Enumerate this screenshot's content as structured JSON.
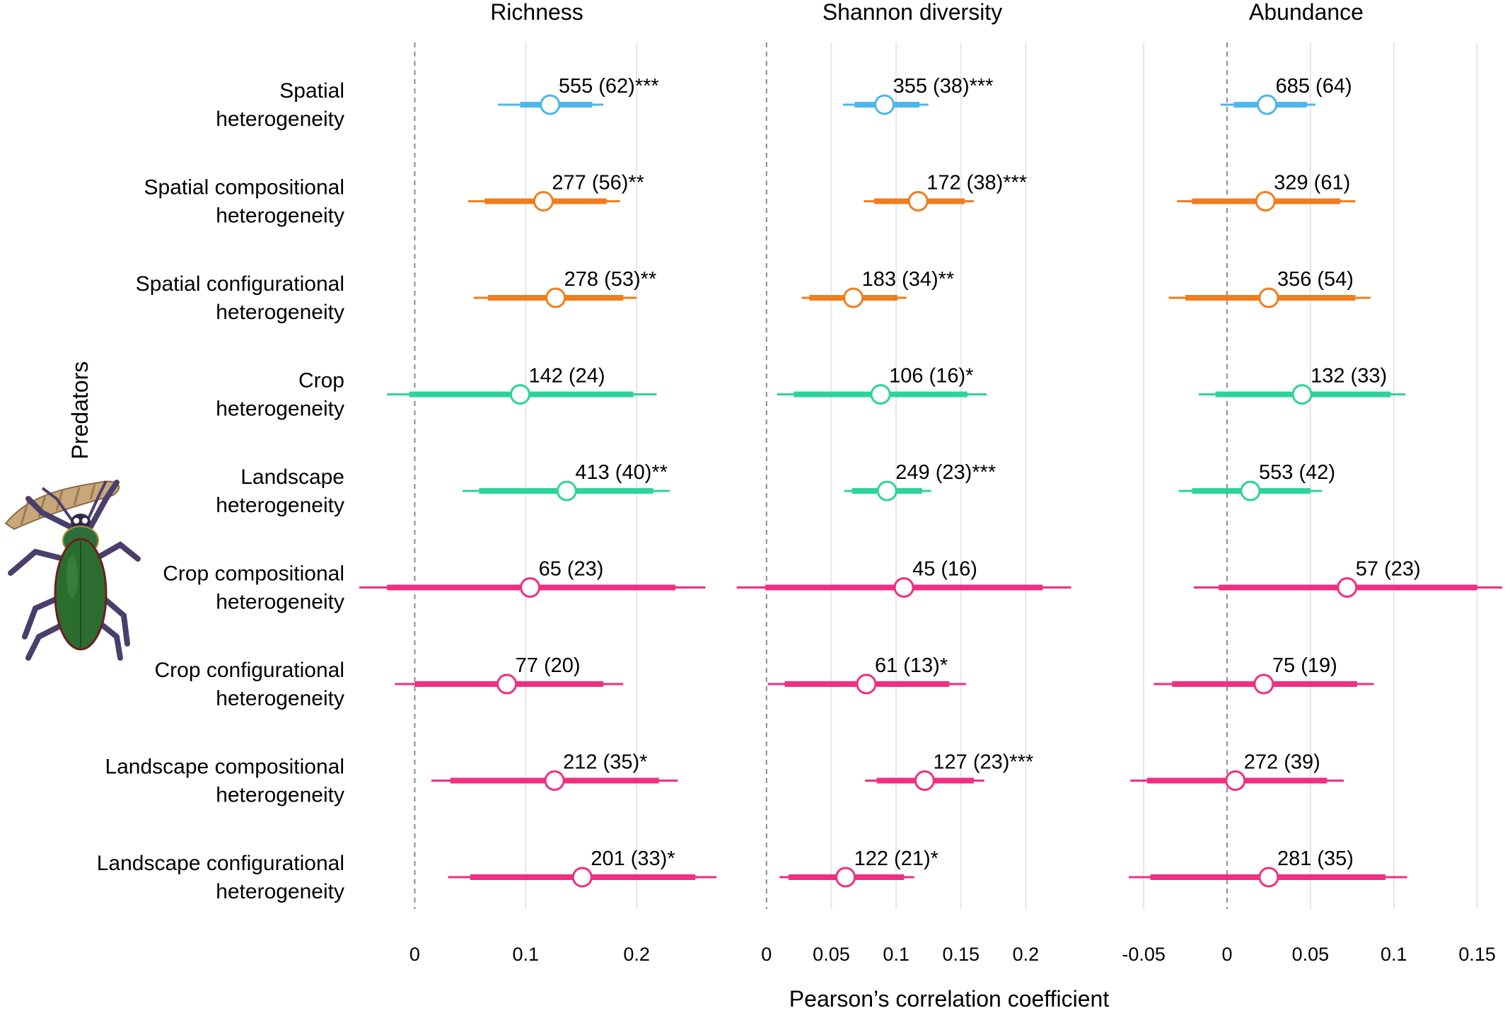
{
  "chart_data": {
    "type": "forest",
    "group_label": "Predators",
    "xlabel": "Pearson’s correlation coefficient",
    "rows": [
      [
        "Spatial",
        "heterogeneity"
      ],
      [
        "Spatial compositional",
        "heterogeneity"
      ],
      [
        "Spatial configurational",
        "heterogeneity"
      ],
      [
        "Crop",
        "heterogeneity"
      ],
      [
        "Landscape",
        "heterogeneity"
      ],
      [
        "Crop compositional",
        "heterogeneity"
      ],
      [
        "Crop configurational",
        "heterogeneity"
      ],
      [
        "Landscape compositional",
        "heterogeneity"
      ],
      [
        "Landscape configurational",
        "heterogeneity"
      ]
    ],
    "row_colors": [
      "#4db6ea",
      "#f07d1e",
      "#f07d1e",
      "#2ed39a",
      "#2ed39a",
      "#f02e82",
      "#f02e82",
      "#f02e82",
      "#f02e82"
    ],
    "panels": [
      {
        "title": "Richness",
        "xlim": [
          -0.05,
          0.27
        ],
        "ticks": [
          0,
          0.1,
          0.2
        ],
        "tick_labels": [
          "0",
          "0.1",
          "0.2"
        ],
        "points": [
          {
            "est": 0.122,
            "ci95": [
              0.075,
              0.17
            ],
            "ci_inner": [
              0.095,
              0.16
            ],
            "label": "555 (62)***"
          },
          {
            "est": 0.116,
            "ci95": [
              0.048,
              0.185
            ],
            "ci_inner": [
              0.063,
              0.173
            ],
            "label": "277 (56)**"
          },
          {
            "est": 0.127,
            "ci95": [
              0.053,
              0.2
            ],
            "ci_inner": [
              0.066,
              0.188
            ],
            "label": "278 (53)**"
          },
          {
            "est": 0.095,
            "ci95": [
              -0.025,
              0.218
            ],
            "ci_inner": [
              -0.005,
              0.197
            ],
            "label": "142 (24)"
          },
          {
            "est": 0.137,
            "ci95": [
              0.043,
              0.23
            ],
            "ci_inner": [
              0.058,
              0.215
            ],
            "label": "413 (40)**"
          },
          {
            "est": 0.104,
            "ci95": [
              -0.05,
              0.262
            ],
            "ci_inner": [
              -0.025,
              0.235
            ],
            "label": "65 (23)"
          },
          {
            "est": 0.083,
            "ci95": [
              -0.018,
              0.188
            ],
            "ci_inner": [
              0.0,
              0.17
            ],
            "label": "77 (20)"
          },
          {
            "est": 0.126,
            "ci95": [
              0.015,
              0.237
            ],
            "ci_inner": [
              0.032,
              0.22
            ],
            "label": "212 (35)*"
          },
          {
            "est": 0.151,
            "ci95": [
              0.03,
              0.272
            ],
            "ci_inner": [
              0.05,
              0.253
            ],
            "label": "201 (33)*"
          }
        ]
      },
      {
        "title": "Shannon diversity",
        "xlim": [
          -0.025,
          0.25
        ],
        "ticks": [
          0,
          0.05,
          0.1,
          0.15,
          0.2
        ],
        "tick_labels": [
          "0",
          "0.05",
          "0.1",
          "0.15",
          "0.2"
        ],
        "points": [
          {
            "est": 0.091,
            "ci95": [
              0.059,
              0.125
            ],
            "ci_inner": [
              0.068,
              0.118
            ],
            "label": "355 (38)***"
          },
          {
            "est": 0.117,
            "ci95": [
              0.075,
              0.16
            ],
            "ci_inner": [
              0.083,
              0.153
            ],
            "label": "172 (38)***"
          },
          {
            "est": 0.067,
            "ci95": [
              0.027,
              0.108
            ],
            "ci_inner": [
              0.033,
              0.101
            ],
            "label": "183 (34)**"
          },
          {
            "est": 0.088,
            "ci95": [
              0.008,
              0.17
            ],
            "ci_inner": [
              0.021,
              0.155
            ],
            "label": "106 (16)*"
          },
          {
            "est": 0.093,
            "ci95": [
              0.06,
              0.127
            ],
            "ci_inner": [
              0.066,
              0.12
            ],
            "label": "249 (23)***"
          },
          {
            "est": 0.106,
            "ci95": [
              -0.023,
              0.235
            ],
            "ci_inner": [
              -0.001,
              0.213
            ],
            "label": "45 (16)"
          },
          {
            "est": 0.077,
            "ci95": [
              0.001,
              0.154
            ],
            "ci_inner": [
              0.014,
              0.141
            ],
            "label": "61 (13)*"
          },
          {
            "est": 0.122,
            "ci95": [
              0.076,
              0.168
            ],
            "ci_inner": [
              0.085,
              0.16
            ],
            "label": "127 (23)***"
          },
          {
            "est": 0.061,
            "ci95": [
              0.01,
              0.114
            ],
            "ci_inner": [
              0.017,
              0.106
            ],
            "label": "122 (21)*"
          }
        ]
      },
      {
        "title": "Abundance",
        "xlim": [
          -0.07,
          0.165
        ],
        "ticks": [
          -0.05,
          0,
          0.05,
          0.1,
          0.15
        ],
        "tick_labels": [
          "-0.05",
          "0",
          "0.05",
          "0.1",
          "0.15"
        ],
        "points": [
          {
            "est": 0.024,
            "ci95": [
              -0.004,
              0.053
            ],
            "ci_inner": [
              0.004,
              0.048
            ],
            "label": "685 (64)"
          },
          {
            "est": 0.023,
            "ci95": [
              -0.03,
              0.077
            ],
            "ci_inner": [
              -0.021,
              0.068
            ],
            "label": "329 (61)"
          },
          {
            "est": 0.025,
            "ci95": [
              -0.035,
              0.086
            ],
            "ci_inner": [
              -0.025,
              0.077
            ],
            "label": "356 (54)"
          },
          {
            "est": 0.045,
            "ci95": [
              -0.017,
              0.107
            ],
            "ci_inner": [
              -0.007,
              0.098
            ],
            "label": "132 (33)"
          },
          {
            "est": 0.014,
            "ci95": [
              -0.029,
              0.057
            ],
            "ci_inner": [
              -0.021,
              0.05
            ],
            "label": "553 (42)"
          },
          {
            "est": 0.072,
            "ci95": [
              -0.02,
              0.165
            ],
            "ci_inner": [
              -0.005,
              0.15
            ],
            "label": "57 (23)"
          },
          {
            "est": 0.022,
            "ci95": [
              -0.044,
              0.088
            ],
            "ci_inner": [
              -0.033,
              0.078
            ],
            "label": "75 (19)"
          },
          {
            "est": 0.005,
            "ci95": [
              -0.058,
              0.07
            ],
            "ci_inner": [
              -0.048,
              0.06
            ],
            "label": "272 (39)"
          },
          {
            "est": 0.025,
            "ci95": [
              -0.059,
              0.108
            ],
            "ci_inner": [
              -0.046,
              0.095
            ],
            "label": "281 (35)"
          }
        ]
      }
    ]
  }
}
